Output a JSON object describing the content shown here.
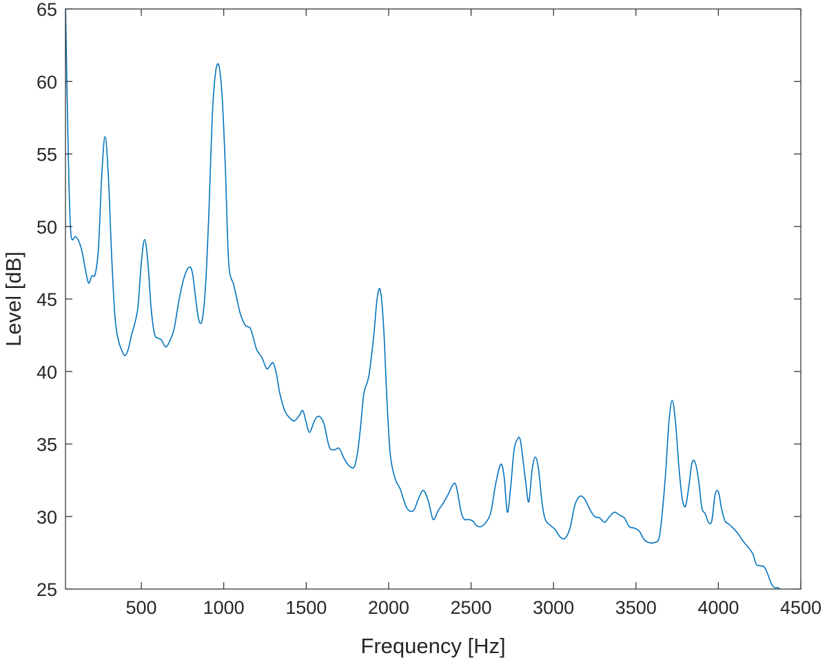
{
  "chart_data": {
    "type": "line",
    "title": "",
    "xlabel": "Frequency [Hz]",
    "ylabel": "Level [dB]",
    "xlim": [
      40,
      4500
    ],
    "ylim": [
      25,
      65
    ],
    "grid": false,
    "legend": "none",
    "line_color": "#0072BD",
    "xticks": [
      500,
      1000,
      1500,
      2000,
      2500,
      3000,
      3500,
      4000,
      4500
    ],
    "yticks": [
      25,
      30,
      35,
      40,
      45,
      50,
      55,
      60,
      65
    ],
    "series": [
      {
        "x": [
          40,
          50,
          60,
          70,
          80,
          100,
          120,
          140,
          160,
          180,
          200,
          220,
          240,
          260,
          280,
          300,
          320,
          340,
          360,
          380,
          400,
          420,
          440,
          460,
          480,
          500,
          520,
          540,
          560,
          580,
          600,
          620,
          650,
          680,
          700,
          730,
          760,
          790,
          810,
          830,
          850,
          870,
          890,
          910,
          930,
          950,
          970,
          990,
          1010,
          1030,
          1060,
          1080,
          1100,
          1130,
          1160,
          1180,
          1200,
          1230,
          1260,
          1280,
          1300,
          1320,
          1340,
          1370,
          1400,
          1430,
          1460,
          1480,
          1500,
          1520,
          1550,
          1570,
          1590,
          1610,
          1640,
          1670,
          1700,
          1730,
          1760,
          1790,
          1810,
          1830,
          1850,
          1880,
          1910,
          1930,
          1950,
          1970,
          1990,
          2010,
          2040,
          2070,
          2110,
          2150,
          2180,
          2210,
          2240,
          2270,
          2300,
          2330,
          2360,
          2390,
          2410,
          2440,
          2460,
          2480,
          2510,
          2530,
          2560,
          2590,
          2620,
          2650,
          2680,
          2700,
          2720,
          2740,
          2760,
          2780,
          2800,
          2830,
          2850,
          2870,
          2890,
          2910,
          2930,
          2950,
          2980,
          3010,
          3040,
          3070,
          3100,
          3130,
          3160,
          3190,
          3220,
          3250,
          3280,
          3310,
          3340,
          3370,
          3400,
          3430,
          3460,
          3490,
          3520,
          3550,
          3580,
          3610,
          3640,
          3660,
          3680,
          3700,
          3720,
          3740,
          3760,
          3780,
          3800,
          3820,
          3840,
          3860,
          3880,
          3900,
          3920,
          3940,
          3960,
          3980,
          4000,
          4020,
          4040,
          4060,
          4090,
          4120,
          4150,
          4180,
          4210,
          4230,
          4260,
          4280,
          4300,
          4320,
          4340,
          4360,
          4380
        ],
        "y": [
          65.5,
          59.0,
          53.5,
          50.0,
          49.1,
          49.3,
          49.0,
          48.3,
          47.1,
          46.1,
          46.6,
          46.7,
          48.5,
          53.5,
          56.2,
          53.5,
          48.0,
          43.8,
          42.2,
          41.5,
          41.1,
          41.5,
          42.5,
          43.3,
          44.5,
          47.5,
          49.1,
          47.5,
          44.3,
          42.6,
          42.3,
          42.2,
          41.7,
          42.3,
          43.0,
          45.0,
          46.5,
          47.2,
          46.8,
          45.0,
          43.5,
          43.6,
          46.0,
          51.0,
          57.5,
          60.6,
          61.1,
          59.0,
          54.0,
          47.5,
          46.0,
          45.0,
          44.0,
          43.2,
          43.0,
          42.3,
          41.5,
          41.0,
          40.2,
          40.4,
          40.6,
          39.8,
          38.5,
          37.3,
          36.8,
          36.6,
          37.0,
          37.3,
          36.5,
          35.8,
          36.6,
          36.9,
          36.8,
          36.3,
          34.8,
          34.6,
          34.7,
          34.0,
          33.5,
          33.4,
          34.3,
          36.2,
          38.5,
          39.7,
          42.5,
          45.0,
          45.6,
          43.0,
          38.0,
          34.3,
          32.6,
          31.9,
          30.6,
          30.4,
          31.2,
          31.8,
          31.1,
          29.8,
          30.4,
          30.9,
          31.5,
          32.2,
          32.1,
          30.3,
          29.8,
          29.8,
          29.7,
          29.4,
          29.3,
          29.6,
          30.3,
          32.3,
          33.6,
          32.8,
          30.3,
          32.0,
          34.5,
          35.3,
          35.2,
          32.5,
          31.0,
          33.2,
          34.1,
          33.2,
          31.0,
          29.8,
          29.4,
          29.1,
          28.6,
          28.5,
          29.2,
          30.8,
          31.4,
          31.2,
          30.5,
          30.0,
          29.9,
          29.6,
          30.0,
          30.3,
          30.1,
          29.9,
          29.3,
          29.2,
          29.0,
          28.4,
          28.2,
          28.2,
          28.5,
          30.3,
          33.0,
          36.5,
          38.0,
          36.5,
          33.5,
          31.3,
          30.7,
          32.0,
          33.7,
          33.7,
          32.5,
          30.6,
          30.2,
          29.6,
          29.7,
          31.5,
          31.7,
          30.5,
          29.7,
          29.5,
          29.2,
          28.8,
          28.3,
          27.9,
          27.4,
          26.7,
          26.6,
          26.5,
          26.0,
          25.4,
          25.1,
          25.1,
          24.9
        ]
      }
    ]
  }
}
